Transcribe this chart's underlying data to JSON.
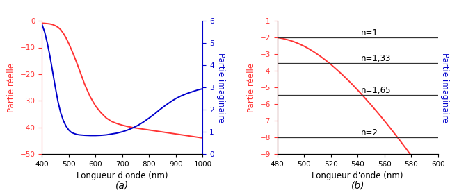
{
  "panel_a": {
    "real_x": [
      400,
      410,
      420,
      430,
      440,
      450,
      460,
      470,
      480,
      490,
      500,
      510,
      520,
      530,
      540,
      560,
      580,
      600,
      620,
      640,
      660,
      680,
      700,
      720,
      740,
      760,
      780,
      800,
      820,
      840,
      860,
      880,
      900,
      920,
      940,
      960,
      980,
      1000
    ],
    "real_y": [
      -0.86,
      -0.92,
      -1.02,
      -1.15,
      -1.4,
      -1.8,
      -2.4,
      -3.3,
      -4.7,
      -6.4,
      -8.5,
      -10.8,
      -13.2,
      -15.8,
      -18.5,
      -24.0,
      -28.5,
      -32.0,
      -34.5,
      -36.5,
      -37.8,
      -38.6,
      -39.2,
      -39.7,
      -40.1,
      -40.4,
      -40.7,
      -41.0,
      -41.3,
      -41.6,
      -41.9,
      -42.2,
      -42.5,
      -42.8,
      -43.1,
      -43.4,
      -43.7,
      -44.0
    ],
    "imag_x": [
      400,
      410,
      420,
      430,
      440,
      450,
      460,
      470,
      480,
      490,
      500,
      510,
      520,
      530,
      540,
      560,
      580,
      600,
      620,
      640,
      650,
      660,
      670,
      680,
      700,
      720,
      740,
      760,
      780,
      800,
      820,
      840,
      860,
      880,
      900,
      920,
      940,
      960,
      980,
      1000
    ],
    "imag_y": [
      5.85,
      5.5,
      5.0,
      4.4,
      3.7,
      3.0,
      2.35,
      1.85,
      1.5,
      1.25,
      1.08,
      0.97,
      0.92,
      0.88,
      0.86,
      0.84,
      0.83,
      0.83,
      0.84,
      0.86,
      0.88,
      0.9,
      0.92,
      0.94,
      1.0,
      1.08,
      1.18,
      1.3,
      1.45,
      1.62,
      1.8,
      2.0,
      2.18,
      2.35,
      2.5,
      2.62,
      2.72,
      2.8,
      2.88,
      2.94
    ],
    "real_color": "#FF3333",
    "imag_color": "#0000CC",
    "ylabel_left": "Partie réelle",
    "ylabel_right": "Partie imaginaire",
    "xlabel": "Longueur d'onde (nm)",
    "xlim": [
      400,
      1000
    ],
    "ylim_left": [
      -50,
      0
    ],
    "ylim_right": [
      0,
      6
    ],
    "xticks": [
      400,
      500,
      600,
      700,
      800,
      900,
      1000
    ],
    "yticks_left": [
      0,
      -10,
      -20,
      -30,
      -40,
      -50
    ],
    "yticks_right": [
      0,
      1,
      2,
      3,
      4,
      5,
      6
    ],
    "label": "(a)"
  },
  "panel_b": {
    "real_x": [
      480,
      484,
      488,
      492,
      496,
      500,
      504,
      508,
      512,
      516,
      520,
      524,
      528,
      532,
      536,
      540,
      544,
      548,
      552,
      556,
      560,
      564,
      568,
      572,
      576,
      580,
      584,
      588,
      592,
      596,
      600
    ],
    "real_y": [
      -2.0,
      -2.06,
      -2.14,
      -2.24,
      -2.37,
      -2.52,
      -2.7,
      -2.9,
      -3.12,
      -3.36,
      -3.62,
      -3.9,
      -4.19,
      -4.5,
      -4.82,
      -5.16,
      -5.51,
      -5.87,
      -6.24,
      -6.62,
      -7.01,
      -7.41,
      -7.82,
      -8.24,
      -8.67,
      -9.1,
      -9.15,
      -9.2,
      -9.25,
      -9.28,
      -9.3
    ],
    "real_color": "#FF3333",
    "ylabel_left": "Partie réelle",
    "ylabel_right_blue": "Partie imaginaire",
    "xlabel": "Longueur d'onde (nm)",
    "xlim": [
      480,
      600
    ],
    "ylim": [
      -9,
      -1
    ],
    "xticks": [
      480,
      500,
      520,
      540,
      560,
      580,
      600
    ],
    "yticks": [
      -1,
      -2,
      -3,
      -4,
      -5,
      -6,
      -7,
      -8,
      -9
    ],
    "hlines": [
      {
        "y": -2.0,
        "label": "n=1",
        "color": "#333333"
      },
      {
        "y": -3.54,
        "label": "n=1,33",
        "color": "#333333"
      },
      {
        "y": -5.46,
        "label": "n=1,65",
        "color": "#333333"
      },
      {
        "y": -8.0,
        "label": "n=2",
        "color": "#333333"
      }
    ],
    "label": "(b)"
  },
  "figure_bg": "#FFFFFF"
}
